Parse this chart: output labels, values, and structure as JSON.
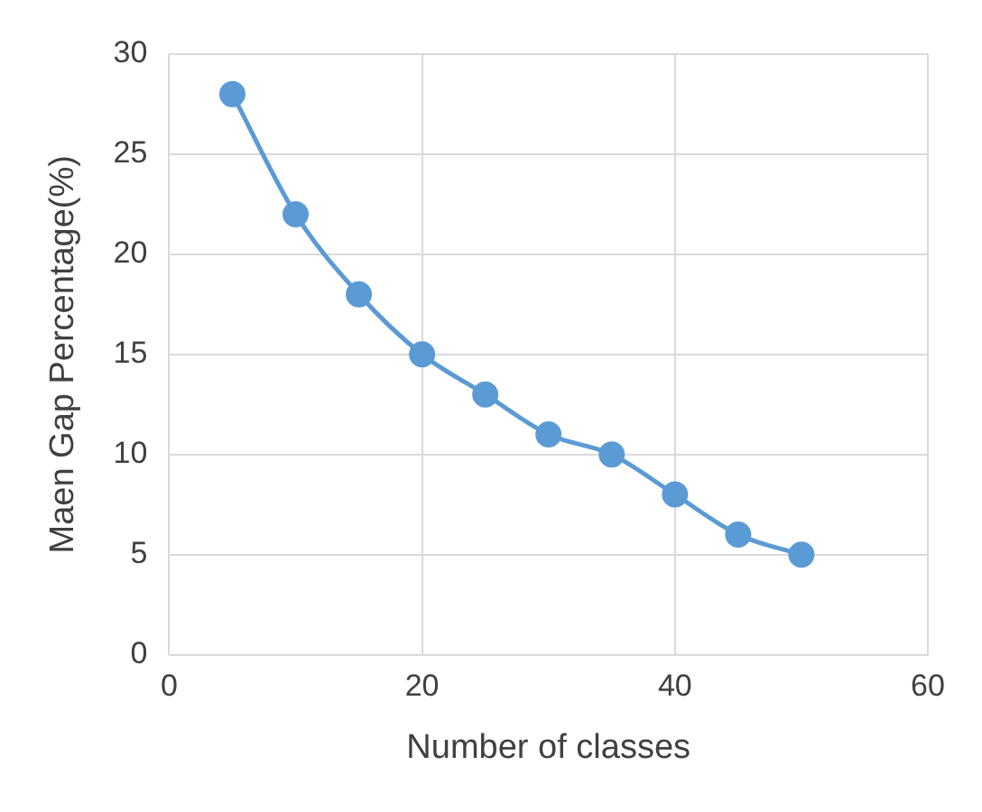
{
  "chart_data": {
    "type": "line",
    "xlabel": "Number of classes",
    "ylabel": "Maen Gap Percentage(%)",
    "x": [
      5,
      10,
      15,
      20,
      25,
      30,
      35,
      40,
      45,
      50
    ],
    "series": [
      {
        "color": "#5b9bd5",
        "values": [
          28,
          22,
          18,
          15,
          13,
          11,
          10,
          8,
          6,
          5
        ]
      }
    ],
    "xlim": [
      0,
      60
    ],
    "xticks": [
      0,
      20,
      40,
      60
    ],
    "ylim": [
      0,
      30
    ],
    "yticks": [
      0,
      5,
      10,
      15,
      20,
      25,
      30
    ],
    "grid": true,
    "legend": false,
    "marker": "circle",
    "line_style": "solid"
  }
}
